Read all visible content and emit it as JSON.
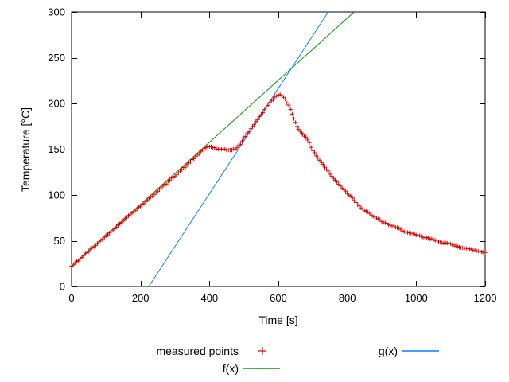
{
  "chart_data": {
    "type": "line",
    "title": "",
    "xlabel": "Time [s]",
    "ylabel": "Temperature [°C]",
    "xlim": [
      0,
      1200
    ],
    "ylim": [
      0,
      300
    ],
    "x_ticks": [
      0,
      200,
      400,
      600,
      800,
      1000,
      1200
    ],
    "y_ticks": [
      0,
      50,
      100,
      150,
      200,
      250,
      300
    ],
    "grid": false,
    "legend_position": "below-plot",
    "series": [
      {
        "name": "measured points",
        "style": "points",
        "marker": "+",
        "color": "#e00000",
        "points": [
          [
            0,
            22
          ],
          [
            15,
            27
          ],
          [
            30,
            32
          ],
          [
            45,
            37
          ],
          [
            60,
            42
          ],
          [
            75,
            47
          ],
          [
            90,
            52
          ],
          [
            105,
            57
          ],
          [
            120,
            62
          ],
          [
            135,
            67
          ],
          [
            150,
            72
          ],
          [
            165,
            77
          ],
          [
            180,
            82
          ],
          [
            195,
            86.5
          ],
          [
            210,
            91
          ],
          [
            225,
            96
          ],
          [
            240,
            101
          ],
          [
            255,
            106
          ],
          [
            270,
            111
          ],
          [
            285,
            116
          ],
          [
            300,
            121
          ],
          [
            315,
            126
          ],
          [
            330,
            131
          ],
          [
            345,
            136.5
          ],
          [
            360,
            142
          ],
          [
            375,
            147
          ],
          [
            390,
            152
          ],
          [
            400,
            153
          ],
          [
            410,
            152
          ],
          [
            425,
            150
          ],
          [
            440,
            149.5
          ],
          [
            455,
            149
          ],
          [
            470,
            150
          ],
          [
            480,
            151
          ],
          [
            490,
            156
          ],
          [
            500,
            162
          ],
          [
            510,
            167
          ],
          [
            520,
            172
          ],
          [
            530,
            177.5
          ],
          [
            540,
            183
          ],
          [
            550,
            188
          ],
          [
            560,
            193
          ],
          [
            570,
            198
          ],
          [
            580,
            203
          ],
          [
            590,
            207
          ],
          [
            600,
            210
          ],
          [
            610,
            208.5
          ],
          [
            620,
            204
          ],
          [
            630,
            198
          ],
          [
            640,
            189
          ],
          [
            650,
            179
          ],
          [
            658,
            172
          ],
          [
            670,
            167
          ],
          [
            685,
            160
          ],
          [
            700,
            149
          ],
          [
            710,
            143
          ],
          [
            720,
            138
          ],
          [
            730,
            133
          ],
          [
            740,
            128
          ],
          [
            750,
            123
          ],
          [
            760,
            118
          ],
          [
            770,
            114
          ],
          [
            780,
            110
          ],
          [
            790,
            106
          ],
          [
            800,
            102
          ],
          [
            815,
            97
          ],
          [
            825,
            92
          ],
          [
            835,
            88
          ],
          [
            850,
            83
          ],
          [
            875,
            77
          ],
          [
            900,
            71
          ],
          [
            925,
            67
          ],
          [
            950,
            63
          ],
          [
            975,
            59
          ],
          [
            1000,
            56
          ],
          [
            1030,
            53
          ],
          [
            1060,
            50
          ],
          [
            1090,
            47
          ],
          [
            1120,
            44
          ],
          [
            1150,
            41
          ],
          [
            1175,
            39
          ],
          [
            1200,
            37
          ]
        ]
      },
      {
        "name": "f(x)",
        "style": "line",
        "color": "#009e00",
        "slope": 0.339,
        "intercept": 22
      },
      {
        "name": "g(x)",
        "style": "line",
        "color": "#0080ff",
        "slope": 0.576,
        "intercept": -129
      }
    ],
    "sampling": {
      "step": 5,
      "jitter": 0.8,
      "seed": 42
    }
  }
}
